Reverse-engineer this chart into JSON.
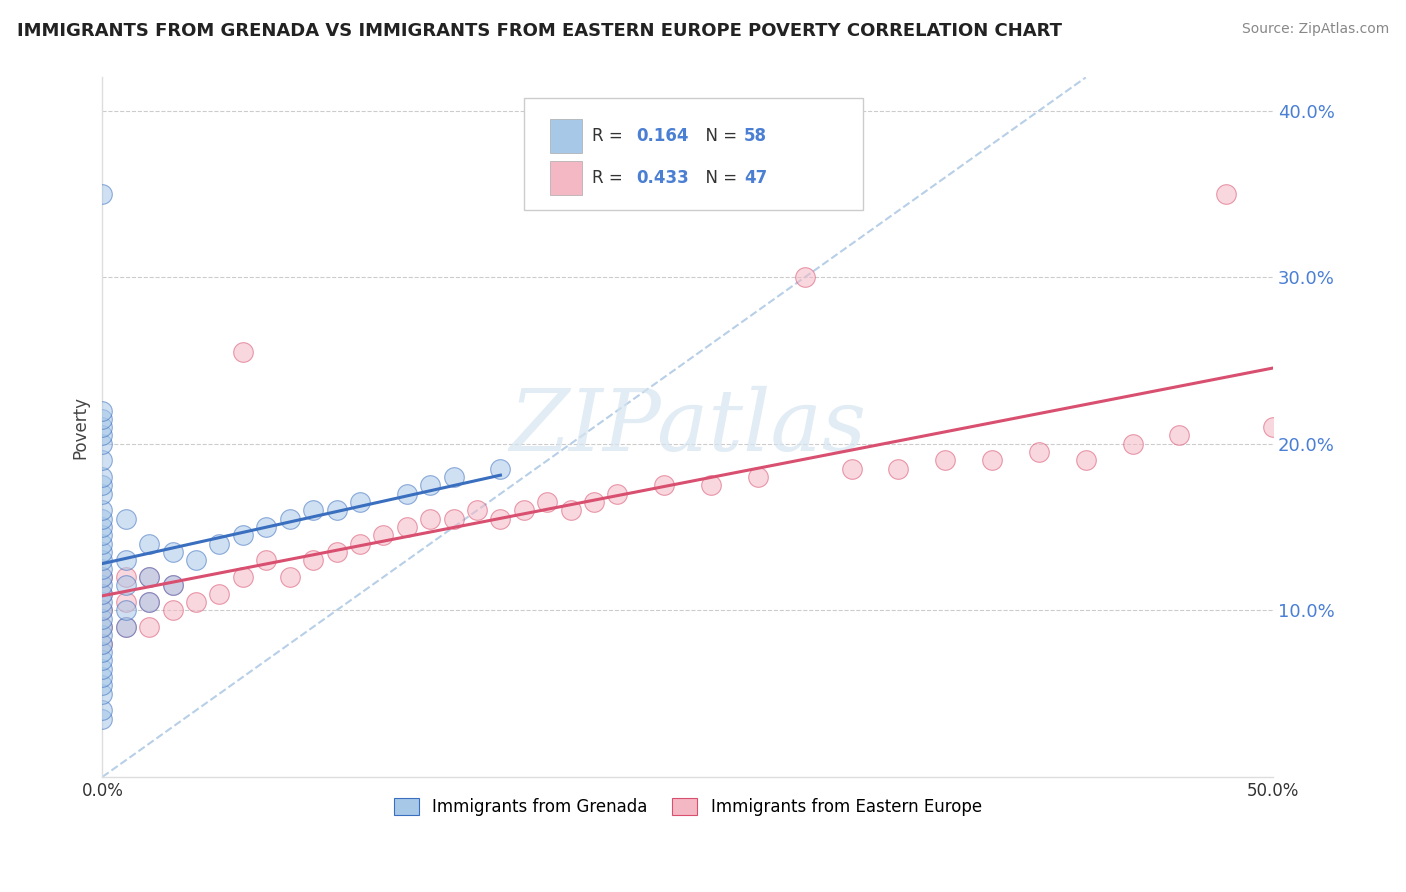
{
  "title": "IMMIGRANTS FROM GRENADA VS IMMIGRANTS FROM EASTERN EUROPE POVERTY CORRELATION CHART",
  "source": "Source: ZipAtlas.com",
  "ylabel": "Poverty",
  "xlim": [
    0.0,
    0.52
  ],
  "ylim": [
    -0.01,
    0.44
  ],
  "plot_xlim": [
    0.0,
    0.5
  ],
  "plot_ylim": [
    0.0,
    0.42
  ],
  "yticks": [
    0.1,
    0.2,
    0.3,
    0.4
  ],
  "ytick_labels": [
    "10.0%",
    "20.0%",
    "30.0%",
    "40.0%"
  ],
  "xticks": [
    0.0,
    0.1,
    0.2,
    0.3,
    0.4,
    0.5
  ],
  "xtick_labels": [
    "0.0%",
    "",
    "",
    "",
    "",
    "50.0%"
  ],
  "color_blue": "#a8c8e8",
  "color_pink": "#f4b8c4",
  "color_blue_line": "#3a6ebf",
  "color_pink_line": "#d94f70",
  "color_dashed": "#b8cfe8",
  "watermark_color": "#d5e5f0",
  "background_color": "#ffffff",
  "grenada_x": [
    0.0,
    0.0,
    0.0,
    0.0,
    0.0,
    0.0,
    0.0,
    0.0,
    0.0,
    0.0,
    0.0,
    0.0,
    0.0,
    0.0,
    0.0,
    0.0,
    0.0,
    0.0,
    0.0,
    0.0,
    0.0,
    0.0,
    0.0,
    0.0,
    0.0,
    0.0,
    0.0,
    0.0,
    0.0,
    0.0,
    0.0,
    0.0,
    0.0,
    0.0,
    0.0,
    0.01,
    0.01,
    0.01,
    0.01,
    0.01,
    0.02,
    0.02,
    0.02,
    0.03,
    0.03,
    0.04,
    0.05,
    0.06,
    0.07,
    0.08,
    0.09,
    0.1,
    0.11,
    0.13,
    0.14,
    0.15,
    0.17
  ],
  "grenada_y": [
    0.035,
    0.04,
    0.05,
    0.055,
    0.06,
    0.065,
    0.07,
    0.075,
    0.08,
    0.085,
    0.09,
    0.095,
    0.1,
    0.105,
    0.11,
    0.115,
    0.12,
    0.125,
    0.13,
    0.135,
    0.14,
    0.145,
    0.15,
    0.155,
    0.16,
    0.17,
    0.175,
    0.18,
    0.19,
    0.2,
    0.205,
    0.21,
    0.215,
    0.22,
    0.35,
    0.09,
    0.1,
    0.115,
    0.13,
    0.155,
    0.105,
    0.12,
    0.14,
    0.115,
    0.135,
    0.13,
    0.14,
    0.145,
    0.15,
    0.155,
    0.16,
    0.16,
    0.165,
    0.17,
    0.175,
    0.18,
    0.185
  ],
  "eastern_x": [
    0.0,
    0.0,
    0.0,
    0.0,
    0.0,
    0.01,
    0.01,
    0.01,
    0.02,
    0.02,
    0.02,
    0.03,
    0.03,
    0.04,
    0.05,
    0.06,
    0.06,
    0.07,
    0.08,
    0.09,
    0.1,
    0.11,
    0.12,
    0.13,
    0.14,
    0.15,
    0.16,
    0.17,
    0.18,
    0.19,
    0.2,
    0.21,
    0.22,
    0.24,
    0.26,
    0.28,
    0.3,
    0.32,
    0.34,
    0.36,
    0.38,
    0.4,
    0.42,
    0.44,
    0.46,
    0.48,
    0.5
  ],
  "eastern_y": [
    0.08,
    0.09,
    0.1,
    0.11,
    0.12,
    0.09,
    0.105,
    0.12,
    0.09,
    0.105,
    0.12,
    0.1,
    0.115,
    0.105,
    0.11,
    0.12,
    0.255,
    0.13,
    0.12,
    0.13,
    0.135,
    0.14,
    0.145,
    0.15,
    0.155,
    0.155,
    0.16,
    0.155,
    0.16,
    0.165,
    0.16,
    0.165,
    0.17,
    0.175,
    0.175,
    0.18,
    0.3,
    0.185,
    0.185,
    0.19,
    0.19,
    0.195,
    0.19,
    0.2,
    0.205,
    0.35,
    0.21
  ]
}
